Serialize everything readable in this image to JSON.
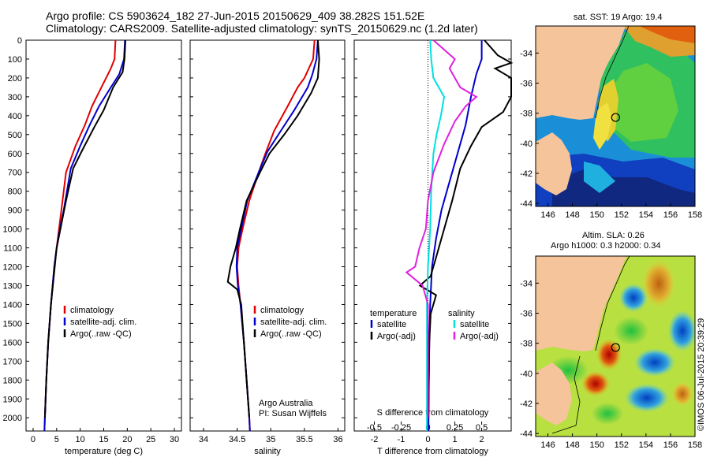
{
  "header": {
    "line1": "Argo profile: CS 5903624_182 27-Jun-2015 20150629_409 38.282S 151.52E",
    "line2": "Climatology: CARS2009. Satellite-adjusted climatology: synTS_20150629.nc (1.2d later)"
  },
  "colors": {
    "climatology": "#e00000",
    "satellite": "#0000cc",
    "argo": "#000000",
    "sal_sat": "#00e0e0",
    "sal_argo": "#e020e0"
  },
  "depth_axis": {
    "ticks": [
      0,
      100,
      200,
      300,
      400,
      500,
      600,
      700,
      800,
      900,
      1000,
      1100,
      1200,
      1300,
      1400,
      1500,
      1600,
      1700,
      1800,
      1900,
      2000
    ],
    "range": [
      0,
      2070
    ]
  },
  "chart_data": [
    {
      "type": "line",
      "xlabel": "temperature (deg C)",
      "xlim": [
        -1.5,
        31.5
      ],
      "xticks": [
        0,
        5,
        10,
        15,
        20,
        25,
        30
      ],
      "legend": [
        "climatology",
        "satellite-adj. clim.",
        "Argo(..raw -QC)"
      ],
      "series": [
        {
          "name": "climatology",
          "color": "#e00000",
          "points": [
            [
              17.5,
              0
            ],
            [
              17.3,
              100
            ],
            [
              16.5,
              150
            ],
            [
              14.5,
              250
            ],
            [
              12.5,
              350
            ],
            [
              11,
              450
            ],
            [
              9,
              560
            ],
            [
              7,
              700
            ],
            [
              6,
              900
            ],
            [
              5.5,
              1000
            ],
            [
              5,
              1100
            ],
            [
              4.5,
              1200
            ],
            [
              3.8,
              1400
            ],
            [
              3.2,
              1600
            ],
            [
              2.8,
              1800
            ],
            [
              2.5,
              2000
            ],
            [
              2.4,
              2070
            ]
          ]
        },
        {
          "name": "satellite-adj. clim.",
          "color": "#0000cc",
          "points": [
            [
              19.5,
              0
            ],
            [
              19.3,
              100
            ],
            [
              18.3,
              180
            ],
            [
              16.5,
              250
            ],
            [
              14,
              350
            ],
            [
              12,
              450
            ],
            [
              10,
              560
            ],
            [
              8,
              680
            ],
            [
              6.5,
              900
            ],
            [
              5.7,
              1000
            ],
            [
              5,
              1100
            ],
            [
              4.5,
              1200
            ],
            [
              3.8,
              1400
            ],
            [
              3.2,
              1600
            ],
            [
              2.8,
              1800
            ],
            [
              2.5,
              2000
            ],
            [
              2.4,
              2070
            ]
          ]
        },
        {
          "name": "Argo(..raw -QC)",
          "color": "#000000",
          "points": [
            [
              19.6,
              0
            ],
            [
              19.4,
              100
            ],
            [
              19,
              170
            ],
            [
              17,
              250
            ],
            [
              15,
              370
            ],
            [
              13,
              460
            ],
            [
              10.5,
              580
            ],
            [
              8.5,
              680
            ],
            [
              7,
              850
            ],
            [
              5.8,
              1000
            ],
            [
              5,
              1100
            ],
            [
              4.6,
              1200
            ],
            [
              4.2,
              1300
            ],
            [
              3.8,
              1400
            ],
            [
              3.2,
              1600
            ],
            [
              2.8,
              1800
            ],
            [
              2.5,
              2000
            ]
          ]
        }
      ]
    },
    {
      "type": "line",
      "xlabel": "salinity",
      "xlim": [
        33.8,
        36.1
      ],
      "xticks": [
        34,
        34.5,
        35,
        35.5,
        36
      ],
      "xticklabels": [
        "34",
        "34.5",
        "35",
        "35.5",
        "36"
      ],
      "legend": [
        "climatology",
        "satellite-adj. clim.",
        "Argo(..raw -QC)"
      ],
      "footer": [
        "Argo Australia",
        "PI: Susan Wijffels"
      ],
      "series": [
        {
          "name": "climatology",
          "color": "#e00000",
          "points": [
            [
              35.65,
              0
            ],
            [
              35.63,
              100
            ],
            [
              35.5,
              200
            ],
            [
              35.4,
              250
            ],
            [
              35.25,
              350
            ],
            [
              35.05,
              480
            ],
            [
              34.92,
              600
            ],
            [
              34.82,
              700
            ],
            [
              34.68,
              850
            ],
            [
              34.58,
              1000
            ],
            [
              34.52,
              1100
            ],
            [
              34.5,
              1200
            ],
            [
              34.52,
              1300
            ],
            [
              34.55,
              1400
            ],
            [
              34.6,
              1600
            ],
            [
              34.64,
              1800
            ],
            [
              34.68,
              2000
            ],
            [
              34.69,
              2070
            ]
          ]
        },
        {
          "name": "satellite-adj. clim.",
          "color": "#0000cc",
          "points": [
            [
              35.7,
              0
            ],
            [
              35.68,
              100
            ],
            [
              35.62,
              180
            ],
            [
              35.55,
              250
            ],
            [
              35.35,
              370
            ],
            [
              35.15,
              480
            ],
            [
              34.95,
              590
            ],
            [
              34.82,
              700
            ],
            [
              34.65,
              850
            ],
            [
              34.56,
              1000
            ],
            [
              34.5,
              1100
            ],
            [
              34.49,
              1200
            ],
            [
              34.51,
              1300
            ],
            [
              34.55,
              1400
            ],
            [
              34.6,
              1600
            ],
            [
              34.64,
              1800
            ],
            [
              34.68,
              2000
            ],
            [
              34.69,
              2070
            ]
          ]
        },
        {
          "name": "Argo(..raw -QC)",
          "color": "#000000",
          "points": [
            [
              35.7,
              0
            ],
            [
              35.72,
              100
            ],
            [
              35.7,
              200
            ],
            [
              35.6,
              280
            ],
            [
              35.4,
              400
            ],
            [
              35.2,
              500
            ],
            [
              34.98,
              600
            ],
            [
              34.84,
              700
            ],
            [
              34.64,
              850
            ],
            [
              34.54,
              1000
            ],
            [
              34.48,
              1100
            ],
            [
              34.4,
              1200
            ],
            [
              34.36,
              1280
            ],
            [
              34.5,
              1320
            ],
            [
              34.56,
              1400
            ],
            [
              34.6,
              1600
            ],
            [
              34.64,
              1800
            ],
            [
              34.68,
              2000
            ]
          ]
        }
      ]
    },
    {
      "type": "line",
      "xlabel": "T difference from climatology",
      "xlabel2": "S difference from climatology",
      "xlim": [
        -2.75,
        3.1
      ],
      "xticks": [
        -2,
        -1,
        0,
        1,
        2
      ],
      "sticks": [
        -0.5,
        -0.25,
        0,
        0.25,
        0.5
      ],
      "sticklabels": [
        "-0.5",
        "-0.25",
        "0",
        "0.25",
        "0.5"
      ],
      "legend_titles": [
        "temperature",
        "salinity"
      ],
      "legend_t": [
        "satellite",
        "Argo(-adj)"
      ],
      "legend_s": [
        "satellite",
        "Argo(-adj)"
      ],
      "series": [
        {
          "name": "temperature satellite",
          "color": "#0000cc",
          "points": [
            [
              2,
              0
            ],
            [
              2,
              100
            ],
            [
              1.8,
              180
            ],
            [
              1.6,
              300
            ],
            [
              1.4,
              450
            ],
            [
              1.1,
              600
            ],
            [
              0.8,
              750
            ],
            [
              0.5,
              900
            ],
            [
              0.3,
              1050
            ],
            [
              0.15,
              1200
            ],
            [
              0.08,
              1400
            ],
            [
              0.05,
              1600
            ],
            [
              0.03,
              1800
            ],
            [
              0.02,
              2000
            ],
            [
              0.02,
              2070
            ]
          ]
        },
        {
          "name": "temperature Argo(-adj)",
          "color": "#000000",
          "points": [
            [
              2.1,
              0
            ],
            [
              2.6,
              80
            ],
            [
              3.1,
              120
            ],
            [
              2.5,
              150
            ],
            [
              3.1,
              200
            ],
            [
              3.1,
              300
            ],
            [
              2.8,
              380
            ],
            [
              2,
              460
            ],
            [
              1.6,
              560
            ],
            [
              1.2,
              680
            ],
            [
              0.9,
              850
            ],
            [
              0.6,
              1000
            ],
            [
              0.3,
              1150
            ],
            [
              0.1,
              1250
            ],
            [
              -0.3,
              1300
            ],
            [
              0.3,
              1350
            ],
            [
              0.1,
              1450
            ],
            [
              0.05,
              1600
            ],
            [
              0.03,
              1800
            ],
            [
              0.02,
              2000
            ]
          ]
        },
        {
          "name": "salinity satellite",
          "color": "#00e0e0",
          "points": [
            [
              0.02,
              0
            ],
            [
              0.03,
              100
            ],
            [
              0.05,
              200
            ],
            [
              0.1,
              250
            ],
            [
              0.15,
              300
            ],
            [
              0.12,
              400
            ],
            [
              0.08,
              500
            ],
            [
              0.05,
              600
            ],
            [
              0.03,
              800
            ],
            [
              0.02,
              1000
            ],
            [
              0.0,
              1200
            ],
            [
              -0.01,
              1400
            ],
            [
              -0.01,
              1600
            ],
            [
              -0.01,
              1800
            ],
            [
              -0.01,
              2000
            ],
            [
              -0.01,
              2070
            ]
          ]
        },
        {
          "name": "salinity Argo(-adj)",
          "color": "#e020e0",
          "points": [
            [
              0.05,
              0
            ],
            [
              0.15,
              50
            ],
            [
              0.25,
              100
            ],
            [
              0.2,
              150
            ],
            [
              0.3,
              250
            ],
            [
              0.45,
              300
            ],
            [
              0.35,
              350
            ],
            [
              0.25,
              430
            ],
            [
              0.15,
              550
            ],
            [
              0.05,
              700
            ],
            [
              0.0,
              850
            ],
            [
              -0.02,
              1000
            ],
            [
              -0.08,
              1100
            ],
            [
              -0.12,
              1200
            ],
            [
              -0.2,
              1230
            ],
            [
              -0.05,
              1300
            ],
            [
              0.0,
              1400
            ],
            [
              0.0,
              1600
            ],
            [
              0.0,
              1800
            ],
            [
              0.0,
              2000
            ]
          ]
        }
      ]
    }
  ],
  "maps": [
    {
      "title": "sat. SST: 19 Argo: 19.4",
      "lon_ticks": [
        "146",
        "148",
        "150",
        "152",
        "154",
        "156",
        "158"
      ],
      "lat_ticks": [
        "-34",
        "-36",
        "-38",
        "-40",
        "-42",
        "-44"
      ],
      "marker": {
        "lon": 151.52,
        "lat": -38.282
      }
    },
    {
      "title1": "Altim. SLA: 0.26",
      "title2": "Argo h1000: 0.3 h2000: 0.34",
      "lon_ticks": [
        "146",
        "148",
        "150",
        "152",
        "154",
        "156",
        "158"
      ],
      "lat_ticks": [
        "-34",
        "-36",
        "-38",
        "-40",
        "-42",
        "-44"
      ],
      "marker": {
        "lon": 151.52,
        "lat": -38.282
      }
    }
  ],
  "credit": "©IMOS 06-Jul-2015 20:39:29"
}
